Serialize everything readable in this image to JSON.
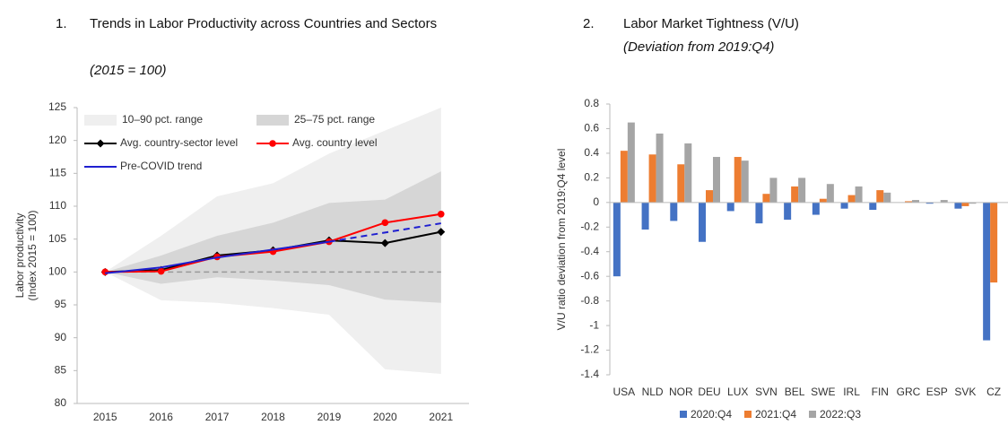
{
  "chart_data": [
    {
      "type": "line",
      "number": "1.",
      "title": "Trends in Labor Productivity across Countries and Sectors",
      "subtitle": "(2015 = 100)",
      "ylabel": [
        "Labor productivity",
        "(Index 2015 = 100)"
      ],
      "categories": [
        "2015",
        "2016",
        "2017",
        "2018",
        "2019",
        "2020",
        "2021"
      ],
      "ylim": [
        80,
        125
      ],
      "yticks": [
        80,
        85,
        90,
        95,
        100,
        105,
        110,
        115,
        120,
        125
      ],
      "bands": [
        {
          "name": "10–90 pct. range",
          "color": "#efefef",
          "lower": [
            100,
            95.7,
            95.3,
            94.5,
            93.5,
            85.2,
            84.5
          ],
          "upper": [
            100,
            105.5,
            111.5,
            113.5,
            118,
            121.5,
            125
          ]
        },
        {
          "name": "25–75 pct. range",
          "color": "#d6d6d6",
          "lower": [
            100,
            98.2,
            99.2,
            98.7,
            98,
            95.8,
            95.3
          ],
          "upper": [
            100,
            102.5,
            105.5,
            107.5,
            110.5,
            111,
            115.3
          ]
        }
      ],
      "reference_line": {
        "value": 100,
        "color": "#999999",
        "dashed": true
      },
      "series": [
        {
          "name": "Avg. country-sector level",
          "color": "#000000",
          "marker": "diamond",
          "values": [
            100,
            100.3,
            102.5,
            103.3,
            104.8,
            104.4,
            106.1
          ]
        },
        {
          "name": "Avg. country level",
          "color": "#ff0000",
          "marker": "circle",
          "values": [
            100,
            100.1,
            102.3,
            103.1,
            104.6,
            107.5,
            108.8
          ]
        },
        {
          "name": "Pre-COVID trend",
          "color": "#1f1fd0",
          "marker": null,
          "dashed_after": "2019",
          "values": [
            99.8,
            100.7,
            102.2,
            103.4,
            104.6,
            106.0,
            107.4
          ]
        }
      ]
    },
    {
      "type": "bar",
      "number": "2.",
      "title": "Labor Market Tightness (V/U)",
      "subtitle": "(Deviation from 2019:Q4)",
      "ylabel": [
        "V/U ratio deviation from 2019:Q4 level"
      ],
      "categories": [
        "USA",
        "NLD",
        "NOR",
        "DEU",
        "LUX",
        "SVN",
        "BEL",
        "SWE",
        "IRL",
        "FIN",
        "GRC",
        "ESP",
        "SVK",
        "CZ"
      ],
      "ylim": [
        -1.4,
        0.8
      ],
      "yticks": [
        -1.4,
        -1.2,
        -1,
        -0.8,
        -0.6,
        -0.4,
        -0.2,
        0,
        0.2,
        0.4,
        0.6,
        0.8
      ],
      "legend": "bottom",
      "series": [
        {
          "name": "2020:Q4",
          "color": "#4472c4",
          "values": [
            -0.6,
            -0.22,
            -0.15,
            -0.32,
            -0.07,
            -0.17,
            -0.14,
            -0.1,
            -0.05,
            -0.06,
            0,
            -0.01,
            -0.05,
            -1.12
          ]
        },
        {
          "name": "2021:Q4",
          "color": "#ed7d31",
          "values": [
            0.42,
            0.39,
            0.31,
            0.1,
            0.37,
            0.07,
            0.13,
            0.03,
            0.06,
            0.1,
            0.01,
            0,
            -0.03,
            -0.65
          ]
        },
        {
          "name": "2022:Q3",
          "color": "#a5a5a5",
          "values": [
            0.65,
            0.56,
            0.48,
            0.37,
            0.34,
            0.2,
            0.2,
            0.15,
            0.13,
            0.08,
            0.02,
            0.02,
            -0.01,
            0
          ]
        }
      ]
    }
  ]
}
